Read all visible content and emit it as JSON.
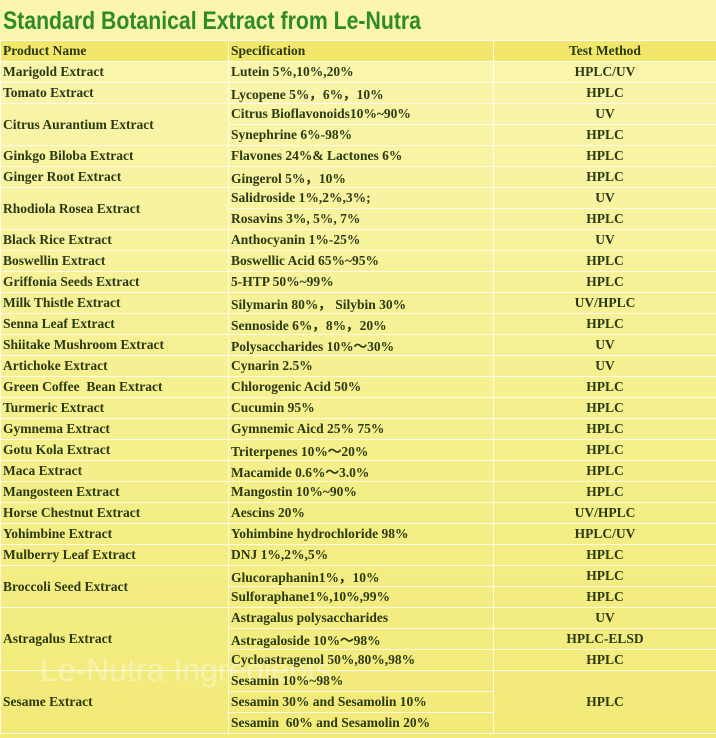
{
  "title": "Standard Botanical Extract from Le-Nutra",
  "watermark": "Le-Nutra Ingredients",
  "table": {
    "header": [
      "Product Name",
      "Specification",
      "Test Method"
    ],
    "rows": [
      {
        "product": "Marigold Extract",
        "specs": [
          "Lutein 5%,10%,20%"
        ],
        "methods": [
          "HPLC/UV"
        ]
      },
      {
        "product": "Tomato Extract",
        "specs": [
          "Lycopene 5%，6%，10%"
        ],
        "methods": [
          "HPLC"
        ]
      },
      {
        "product": "Citrus Aurantium Extract",
        "specs": [
          "Citrus Bioflavonoids10%~90%",
          "Synephrine 6%-98%"
        ],
        "methods": [
          "UV",
          "HPLC"
        ]
      },
      {
        "product": "Ginkgo Biloba Extract",
        "specs": [
          "Flavones 24%& Lactones 6%"
        ],
        "methods": [
          "HPLC"
        ]
      },
      {
        "product": "Ginger Root Extract",
        "specs": [
          "Gingerol 5%，10%"
        ],
        "methods": [
          "HPLC"
        ]
      },
      {
        "product": "Rhodiola Rosea Extract",
        "specs": [
          "Salidroside 1%,2%,3%;",
          "Rosavins 3%, 5%, 7%"
        ],
        "methods": [
          "UV",
          "HPLC"
        ]
      },
      {
        "product": "Black Rice Extract",
        "specs": [
          "Anthocyanin 1%-25%"
        ],
        "methods": [
          "UV"
        ]
      },
      {
        "product": "Boswellin Extract",
        "specs": [
          "Boswellic Acid 65%~95%"
        ],
        "methods": [
          "HPLC"
        ]
      },
      {
        "product": "Griffonia Seeds Extract",
        "specs": [
          "5-HTP 50%~99%"
        ],
        "methods": [
          "HPLC"
        ]
      },
      {
        "product": "Milk Thistle Extract",
        "specs": [
          "Silymarin 80%， Silybin 30%"
        ],
        "methods": [
          "UV/HPLC"
        ]
      },
      {
        "product": "Senna Leaf Extract",
        "specs": [
          "Sennoside 6%，8%，20%"
        ],
        "methods": [
          "HPLC"
        ]
      },
      {
        "product": "Shiitake Mushroom Extract",
        "specs": [
          "Polysaccharides 10%～30%"
        ],
        "methods": [
          "UV"
        ]
      },
      {
        "product": "Artichoke Extract",
        "specs": [
          "Cynarin 2.5%"
        ],
        "methods": [
          "UV"
        ]
      },
      {
        "product": "Green Coffee  Bean Extract",
        "specs": [
          "Chlorogenic Acid 50%"
        ],
        "methods": [
          "HPLC"
        ]
      },
      {
        "product": "Turmeric Extract",
        "specs": [
          "Cucumin 95%"
        ],
        "methods": [
          "HPLC"
        ]
      },
      {
        "product": "Gymnema Extract",
        "specs": [
          "Gymnemic Aicd 25% 75%"
        ],
        "methods": [
          "HPLC"
        ]
      },
      {
        "product": "Gotu Kola Extract",
        "specs": [
          "Triterpenes 10%～20%"
        ],
        "methods": [
          "HPLC"
        ]
      },
      {
        "product": "Maca Extract",
        "specs": [
          "Macamide 0.6%～3.0%"
        ],
        "methods": [
          "HPLC"
        ]
      },
      {
        "product": "Mangosteen Extract",
        "specs": [
          "Mangostin 10%~90%"
        ],
        "methods": [
          "HPLC"
        ]
      },
      {
        "product": "Horse Chestnut Extract",
        "specs": [
          "Aescins 20%"
        ],
        "methods": [
          "UV/HPLC"
        ]
      },
      {
        "product": "Yohimbine Extract",
        "specs": [
          "Yohimbine hydrochloride 98%"
        ],
        "methods": [
          "HPLC/UV"
        ]
      },
      {
        "product": "Mulberry Leaf Extract",
        "specs": [
          "DNJ 1%,2%,5%"
        ],
        "methods": [
          "HPLC"
        ]
      },
      {
        "product": "Broccoli Seed Extract",
        "specs": [
          "Glucoraphanin1%，10%",
          "Sulforaphane1%,10%,99%"
        ],
        "methods": [
          "HPLC",
          "HPLC"
        ]
      },
      {
        "product": "Astragalus Extract",
        "specs": [
          "Astragalus polysaccharides",
          "Astragaloside 10%～98%",
          "Cycloastragenol 50%,80%,98%"
        ],
        "methods": [
          "UV",
          "HPLC-ELSD",
          "HPLC"
        ]
      },
      {
        "product": "Sesame Extract",
        "specs": [
          "Sesamin 10%~98%",
          "Sesamin 30% and Sesamolin 10%",
          "Sesamin  60% and Sesamolin 20%"
        ],
        "methods": [
          "HPLC"
        ]
      }
    ]
  }
}
